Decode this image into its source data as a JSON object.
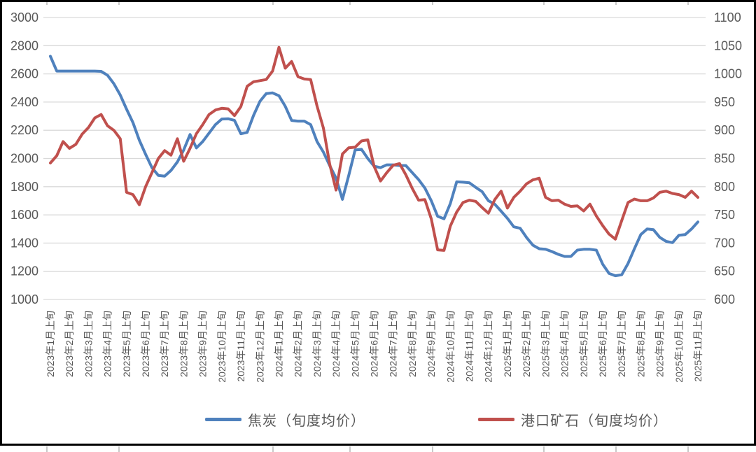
{
  "chart_data": {
    "type": "line",
    "title": "",
    "grid": "horizontal",
    "legend_position": "bottom",
    "points_per_month": 3,
    "x_labels": [
      "2023年1月上旬",
      "2023年2月上旬",
      "2023年3月上旬",
      "2023年4月上旬",
      "2023年5月上旬",
      "2023年6月上旬",
      "2023年7月上旬",
      "2023年8月上旬",
      "2023年9月上旬",
      "2023年10月上旬",
      "2023年11月上旬",
      "2023年12月上旬",
      "2024年1月上旬",
      "2024年2月上旬",
      "2024年3月上旬",
      "2024年4月上旬",
      "2024年5月上旬",
      "2024年6月上旬",
      "2024年7月上旬",
      "2024年8月上旬",
      "2024年9月上旬",
      "2024年10月上旬",
      "2024年11月上旬",
      "2024年12月上旬",
      "2025年1月上旬",
      "2025年2月上旬",
      "2025年3月上旬",
      "2025年4月上旬",
      "2025年5月上旬",
      "2025年6月上旬",
      "2025年7月上旬",
      "2025年8月上旬",
      "2025年9月上旬",
      "2025年10月上旬",
      "2025年11月上旬"
    ],
    "left_axis": {
      "min": 1000,
      "max": 3000,
      "step": 200,
      "ticks": [
        3000,
        2800,
        2600,
        2400,
        2200,
        2000,
        1800,
        1600,
        1400,
        1200,
        1000
      ]
    },
    "right_axis": {
      "min": 600,
      "max": 1100,
      "step": 50,
      "ticks": [
        1100,
        1050,
        1000,
        950,
        900,
        850,
        800,
        750,
        700,
        650,
        600
      ]
    },
    "series": [
      {
        "name": "焦炭（旬度均价）",
        "color": "#4F81BD",
        "axis": "left",
        "values": [
          2725,
          2620,
          2620,
          2620,
          2620,
          2620,
          2620,
          2620,
          2618,
          2590,
          2530,
          2450,
          2350,
          2255,
          2130,
          2030,
          1935,
          1880,
          1875,
          1915,
          1975,
          2060,
          2170,
          2075,
          2120,
          2180,
          2240,
          2280,
          2282,
          2270,
          2175,
          2185,
          2305,
          2405,
          2460,
          2465,
          2445,
          2370,
          2270,
          2265,
          2265,
          2240,
          2120,
          2045,
          1950,
          1860,
          1710,
          1880,
          2060,
          2065,
          2000,
          1945,
          1935,
          1955,
          1955,
          1950,
          1950,
          1900,
          1850,
          1790,
          1700,
          1590,
          1572,
          1680,
          1834,
          1832,
          1828,
          1795,
          1765,
          1700,
          1676,
          1626,
          1575,
          1515,
          1505,
          1440,
          1385,
          1360,
          1356,
          1340,
          1320,
          1305,
          1305,
          1350,
          1356,
          1356,
          1350,
          1250,
          1185,
          1168,
          1175,
          1255,
          1360,
          1460,
          1500,
          1495,
          1440,
          1412,
          1403,
          1455,
          1460,
          1500,
          1550
        ]
      },
      {
        "name": "港口矿石（旬度均价）",
        "color": "#C0504D",
        "axis": "right",
        "values": [
          842,
          855,
          880,
          868,
          875,
          893,
          905,
          922,
          928,
          908,
          900,
          885,
          790,
          786,
          768,
          800,
          825,
          850,
          864,
          856,
          885,
          845,
          868,
          894,
          910,
          928,
          936,
          939,
          938,
          926,
          942,
          978,
          986,
          988,
          990,
          1005,
          1047,
          1010,
          1022,
          995,
          991,
          990,
          943,
          904,
          840,
          794,
          858,
          869,
          870,
          881,
          883,
          836,
          810,
          825,
          838,
          841,
          821,
          797,
          776,
          777,
          743,
          688,
          687,
          730,
          755,
          772,
          776,
          774,
          763,
          753,
          777,
          792,
          762,
          781,
          792,
          805,
          812,
          815,
          781,
          775,
          776,
          769,
          765,
          766,
          757,
          769,
          748,
          731,
          716,
          707,
          740,
          772,
          778,
          775,
          775,
          780,
          790,
          792,
          788,
          786,
          781,
          792,
          781
        ]
      }
    ],
    "colors": {
      "axis_text": "#595959",
      "gridline": "#D9D9D9",
      "frame": "#000000"
    }
  }
}
